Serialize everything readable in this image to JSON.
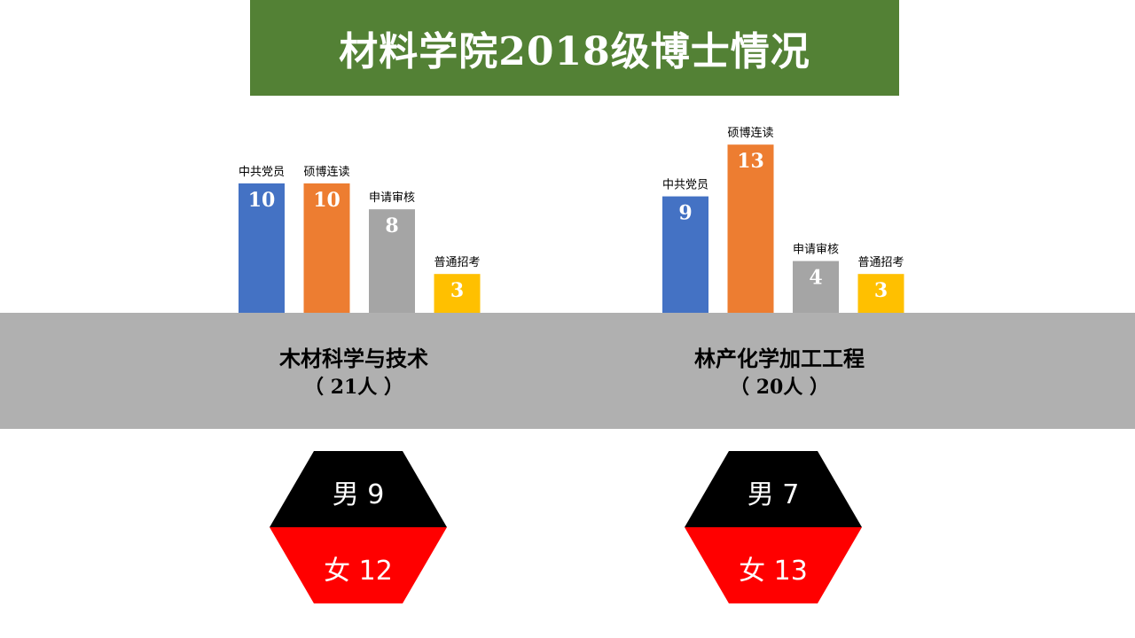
{
  "title": "材料学院2018级博士情况",
  "colors": {
    "banner": "#538135",
    "band": "#b0b0b0",
    "male": "#000000",
    "female": "#ff0000"
  },
  "majors": [
    {
      "name": "木材科学与技术",
      "count_label": "（ 21人 ）",
      "gender": {
        "male_label": "男 9",
        "female_label": "女 12"
      }
    },
    {
      "name": "林产化学加工工程",
      "count_label": "（ 20人 ）",
      "gender": {
        "male_label": "男 7",
        "female_label": "女 13"
      }
    }
  ],
  "chart_data": [
    {
      "type": "bar",
      "categories": [
        "中共党员",
        "硕博连读",
        "申请审核",
        "普通招考"
      ],
      "values": [
        10,
        10,
        8,
        3
      ],
      "colors": [
        "#4472c4",
        "#ed7d31",
        "#a5a5a5",
        "#ffc000"
      ],
      "title": "木材科学与技术"
    },
    {
      "type": "bar",
      "categories": [
        "中共党员",
        "硕博连读",
        "申请审核",
        "普通招考"
      ],
      "values": [
        9,
        13,
        4,
        3
      ],
      "colors": [
        "#4472c4",
        "#ed7d31",
        "#a5a5a5",
        "#ffc000"
      ],
      "title": "林产化学加工工程"
    }
  ]
}
